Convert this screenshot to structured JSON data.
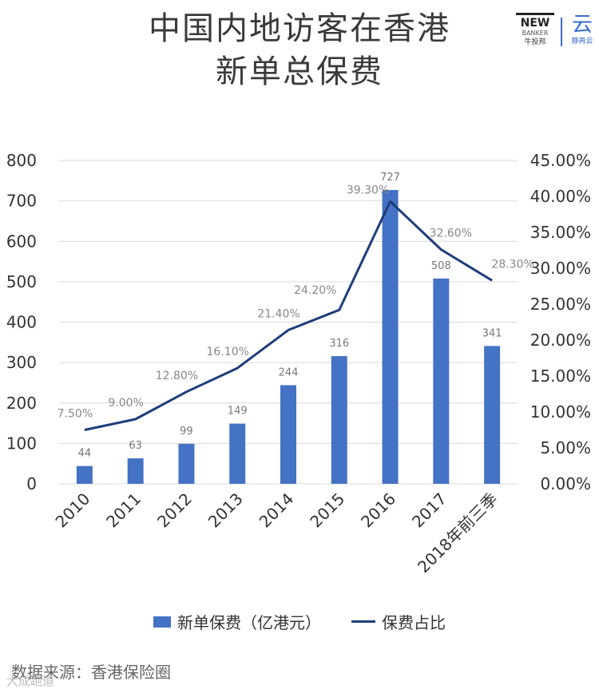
{
  "title": {
    "line1": "中国内地访客在香港",
    "line2": "新单总保费"
  },
  "logos": {
    "newbanker": {
      "mark": "NEW",
      "sub": "BANKER",
      "cn": "牛投邦"
    },
    "yun": {
      "mark": "云",
      "cn": "静再云"
    }
  },
  "chart_data": {
    "type": "bar+line",
    "categories": [
      "2010",
      "2011",
      "2012",
      "2013",
      "2014",
      "2015",
      "2016",
      "2017",
      "2018年前三季"
    ],
    "series": [
      {
        "name": "新单保费（亿港元）",
        "type": "bar",
        "axis": "left",
        "values": [
          44,
          63,
          99,
          149,
          244,
          316,
          727,
          508,
          341
        ],
        "labels": [
          "44",
          "63",
          "99",
          "149",
          "244",
          "316",
          "727",
          "508",
          "341"
        ]
      },
      {
        "name": "保费占比",
        "type": "line",
        "axis": "right",
        "values": [
          7.5,
          9.0,
          12.8,
          16.1,
          21.4,
          24.2,
          39.3,
          32.6,
          28.3
        ],
        "labels": [
          "7.50%",
          "9.00%",
          "12.80%",
          "16.10%",
          "21.40%",
          "24.20%",
          "39.30%",
          "32.60%",
          "28.30%"
        ]
      }
    ],
    "y_left": {
      "min": 0,
      "max": 800,
      "ticks": [
        "0",
        "100",
        "200",
        "300",
        "400",
        "500",
        "600",
        "700",
        "800"
      ]
    },
    "y_right": {
      "min": 0,
      "max": 45,
      "ticks": [
        "0.00%",
        "5.00%",
        "10.00%",
        "15.00%",
        "20.00%",
        "25.00%",
        "30.00%",
        "35.00%",
        "40.00%",
        "45.00%"
      ]
    },
    "grid": true,
    "legend": "bottom",
    "colors": {
      "bar": "#4472c4",
      "line": "#1f3d7a",
      "grid": "#d9d9d9"
    }
  },
  "legend": {
    "bar_label": "新单保费（亿港元）",
    "line_label": "保费占比"
  },
  "source": "数据来源：香港保险圈",
  "watermark": "大成跑道"
}
